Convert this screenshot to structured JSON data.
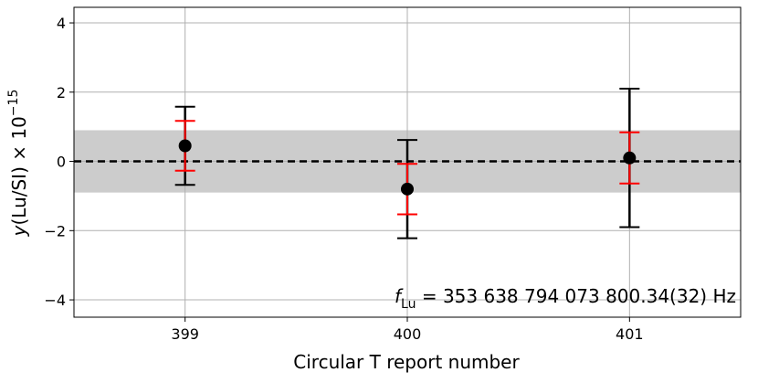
{
  "chart_data": {
    "type": "errorbar",
    "x": [
      399,
      400,
      401
    ],
    "series": [
      {
        "color": "#000000",
        "values": [
          0.45,
          -0.8,
          0.1
        ],
        "errors": [
          1.13,
          1.42,
          2.0
        ],
        "error_color": "#000000",
        "inner_errors": [
          0.72,
          0.73,
          0.74
        ],
        "inner_error_color": "#ff0000"
      }
    ],
    "xlim": [
      398.5,
      401.5
    ],
    "xticks": [
      399,
      400,
      401
    ],
    "ylim": [
      -4.5,
      4.45
    ],
    "yticks": [
      {
        "value": -4,
        "label": "−4"
      },
      {
        "value": -2,
        "label": "−2"
      },
      0,
      2,
      4
    ],
    "xlabel": "Circular T report number",
    "ylabel": {
      "symbol": "y",
      "text": "(Lu/SI) × 10",
      "exponent": "−15"
    },
    "band": [
      -0.9,
      0.9
    ],
    "band_color": "#cccccc",
    "hline": 0,
    "annotation": {
      "symbol": "f",
      "subscript": "Lu",
      "text": " = 353 638 794 073 800.34(32) Hz"
    },
    "grid": true
  }
}
